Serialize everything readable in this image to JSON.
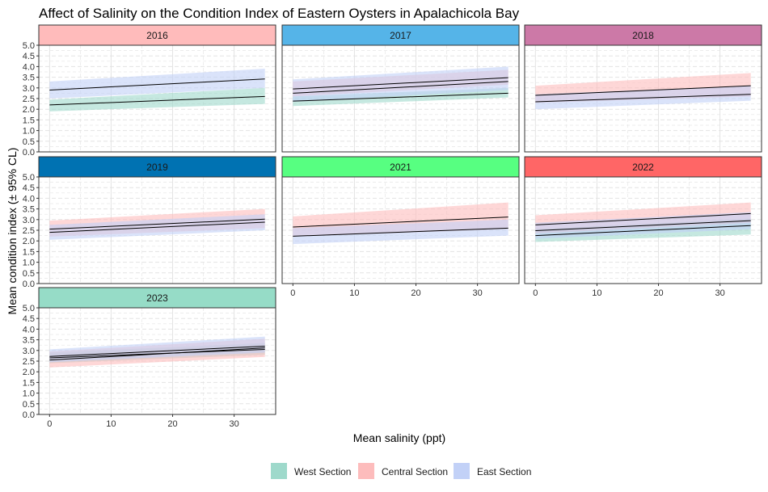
{
  "chart_data": {
    "type": "line",
    "title": "Affect of Salinity on the Condition Index of Eastern Oysters in Apalachicola Bay",
    "xlabel": "Mean salinity (ppt)",
    "ylabel": "Mean condition index (± 95% CL)",
    "xlim": [
      -1.75,
      36.75
    ],
    "ylim": [
      0,
      5
    ],
    "x_ticks": [
      0,
      10,
      20,
      30
    ],
    "y_ticks": [
      "0.0",
      "0.5",
      "1.0",
      "1.5",
      "2.0",
      "2.5",
      "3.0",
      "3.5",
      "4.0",
      "4.5",
      "5.0"
    ],
    "grid": true,
    "legend_position": "bottom",
    "legend": [
      {
        "name": "West Section",
        "color": "#9ed9cb"
      },
      {
        "name": "Central Section",
        "color": "#fdbcbc"
      },
      {
        "name": "East Section",
        "color": "#c2d1f7"
      }
    ],
    "panels": [
      {
        "label": "2016",
        "strip_color": "#ffbbbb",
        "series": [
          {
            "section": "West Section",
            "x": [
              0,
              35
            ],
            "y": [
              2.2,
              2.6
            ],
            "lower": [
              1.9,
              2.25
            ],
            "upper": [
              2.45,
              3.0
            ]
          },
          {
            "section": "East Section",
            "x": [
              0,
              35
            ],
            "y": [
              2.9,
              3.42
            ],
            "lower": [
              2.5,
              3.0
            ],
            "upper": [
              3.3,
              3.9
            ]
          }
        ]
      },
      {
        "label": "2017",
        "strip_color": "#55b4e8",
        "series": [
          {
            "section": "West Section",
            "x": [
              0,
              35
            ],
            "y": [
              2.38,
              2.75
            ],
            "lower": [
              2.15,
              2.55
            ],
            "upper": [
              2.6,
              3.0
            ]
          },
          {
            "section": "Central Section",
            "x": [
              0,
              35
            ],
            "y": [
              2.95,
              3.48
            ],
            "lower": [
              2.6,
              3.15
            ],
            "upper": [
              3.3,
              3.85
            ]
          },
          {
            "section": "East Section",
            "x": [
              0,
              35
            ],
            "y": [
              2.75,
              3.3
            ],
            "lower": [
              2.35,
              2.9
            ],
            "upper": [
              3.4,
              4.0
            ]
          }
        ]
      },
      {
        "label": "2018",
        "strip_color": "#cc79a7",
        "series": [
          {
            "section": "Central Section",
            "x": [
              0,
              35
            ],
            "y": [
              2.65,
              3.1
            ],
            "lower": [
              2.3,
              2.6
            ],
            "upper": [
              3.1,
              3.7
            ]
          },
          {
            "section": "East Section",
            "x": [
              0,
              35
            ],
            "y": [
              2.35,
              2.7
            ],
            "lower": [
              2.0,
              2.4
            ],
            "upper": [
              2.7,
              3.1
            ]
          }
        ]
      },
      {
        "label": "2019",
        "strip_color": "#0072b2",
        "series": [
          {
            "section": "Central Section",
            "x": [
              0,
              35
            ],
            "y": [
              2.55,
              3.02
            ],
            "lower": [
              2.2,
              2.6
            ],
            "upper": [
              2.95,
              3.5
            ]
          },
          {
            "section": "East Section",
            "x": [
              0,
              35
            ],
            "y": [
              2.4,
              2.88
            ],
            "lower": [
              2.05,
              2.5
            ],
            "upper": [
              2.75,
              3.25
            ]
          }
        ]
      },
      {
        "label": "2021",
        "strip_color": "#57ff81",
        "series": [
          {
            "section": "Central Section",
            "x": [
              0,
              35
            ],
            "y": [
              2.65,
              3.12
            ],
            "lower": [
              2.2,
              2.55
            ],
            "upper": [
              3.15,
              3.8
            ]
          },
          {
            "section": "East Section",
            "x": [
              0,
              35
            ],
            "y": [
              2.22,
              2.6
            ],
            "lower": [
              1.85,
              2.25
            ],
            "upper": [
              2.6,
              3.0
            ]
          }
        ]
      },
      {
        "label": "2022",
        "strip_color": "#ff6666",
        "series": [
          {
            "section": "West Section",
            "x": [
              0,
              35
            ],
            "y": [
              2.25,
              2.72
            ],
            "lower": [
              1.95,
              2.3
            ],
            "upper": [
              2.55,
              3.05
            ]
          },
          {
            "section": "Central Section",
            "x": [
              0,
              35
            ],
            "y": [
              2.75,
              3.28
            ],
            "lower": [
              2.35,
              2.85
            ],
            "upper": [
              3.2,
              3.8
            ]
          },
          {
            "section": "East Section",
            "x": [
              0,
              35
            ],
            "y": [
              2.48,
              2.95
            ],
            "lower": [
              2.1,
              2.55
            ],
            "upper": [
              2.85,
              3.35
            ]
          }
        ]
      },
      {
        "label": "2023",
        "strip_color": "#96dcc7",
        "series": [
          {
            "section": "West Section",
            "x": [
              0,
              35
            ],
            "y": [
              2.65,
              3.05
            ],
            "lower": [
              2.4,
              2.8
            ],
            "upper": [
              2.9,
              3.35
            ]
          },
          {
            "section": "Central Section",
            "x": [
              0,
              35
            ],
            "y": [
              2.55,
              3.12
            ],
            "lower": [
              2.2,
              2.7
            ],
            "upper": [
              2.95,
              3.55
            ]
          },
          {
            "section": "East Section",
            "x": [
              0,
              35
            ],
            "y": [
              2.72,
              3.2
            ],
            "lower": [
              2.45,
              2.9
            ],
            "upper": [
              3.05,
              3.65
            ]
          }
        ]
      }
    ]
  }
}
